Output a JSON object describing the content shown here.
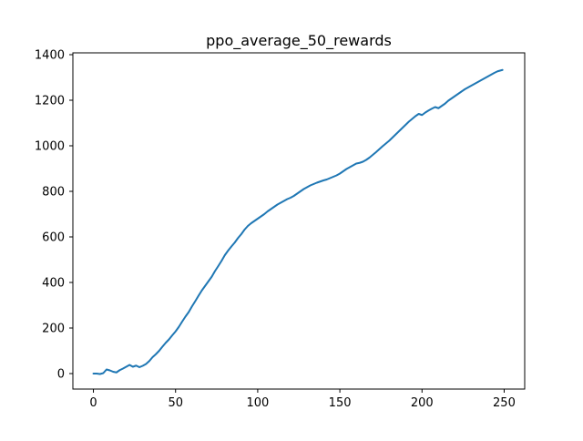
{
  "chart_data": {
    "type": "line",
    "title": "ppo_average_50_rewards",
    "xlabel": "",
    "ylabel": "",
    "xlim": [
      -12.5,
      262.5
    ],
    "ylim": [
      -68,
      1408
    ],
    "xticks": [
      0,
      50,
      100,
      150,
      200,
      250
    ],
    "yticks": [
      0,
      200,
      400,
      600,
      800,
      1000,
      1200,
      1400
    ],
    "grid": false,
    "legend": "none",
    "line_color": "#1f77b4",
    "series": [
      {
        "x": [
          0,
          2,
          4,
          6,
          8,
          10,
          12,
          14,
          16,
          18,
          20,
          22,
          24,
          26,
          28,
          30,
          32,
          34,
          36,
          38,
          40,
          42,
          44,
          46,
          48,
          50,
          52,
          54,
          56,
          58,
          60,
          62,
          64,
          66,
          68,
          70,
          72,
          74,
          76,
          78,
          80,
          82,
          84,
          86,
          88,
          90,
          92,
          94,
          96,
          98,
          100,
          102,
          104,
          106,
          108,
          110,
          112,
          114,
          116,
          118,
          120,
          122,
          124,
          126,
          128,
          130,
          132,
          134,
          136,
          138,
          140,
          142,
          144,
          146,
          148,
          150,
          152,
          154,
          156,
          158,
          160,
          162,
          164,
          166,
          168,
          170,
          172,
          174,
          176,
          178,
          180,
          182,
          184,
          186,
          188,
          190,
          192,
          194,
          196,
          198,
          200,
          202,
          204,
          206,
          208,
          210,
          212,
          214,
          216,
          218,
          220,
          222,
          224,
          226,
          228,
          230,
          232,
          234,
          236,
          238,
          240,
          242,
          244,
          246,
          248,
          249
        ],
        "y": [
          0,
          0,
          -2,
          2,
          18,
          14,
          8,
          5,
          15,
          22,
          30,
          38,
          30,
          35,
          28,
          34,
          42,
          55,
          72,
          85,
          100,
          118,
          135,
          150,
          168,
          185,
          205,
          228,
          250,
          270,
          295,
          318,
          342,
          365,
          385,
          405,
          425,
          450,
          472,
          495,
          520,
          540,
          558,
          575,
          595,
          612,
          632,
          648,
          660,
          670,
          680,
          690,
          700,
          712,
          722,
          732,
          742,
          750,
          758,
          766,
          772,
          780,
          790,
          800,
          810,
          818,
          826,
          832,
          838,
          843,
          848,
          852,
          858,
          864,
          870,
          878,
          888,
          898,
          906,
          914,
          922,
          925,
          930,
          938,
          948,
          960,
          972,
          985,
          998,
          1010,
          1022,
          1036,
          1050,
          1064,
          1078,
          1092,
          1106,
          1118,
          1130,
          1140,
          1135,
          1146,
          1155,
          1163,
          1170,
          1165,
          1175,
          1185,
          1198,
          1208,
          1218,
          1228,
          1238,
          1248,
          1256,
          1264,
          1272,
          1280,
          1288,
          1296,
          1304,
          1312,
          1320,
          1327,
          1331,
          1333
        ]
      }
    ]
  }
}
